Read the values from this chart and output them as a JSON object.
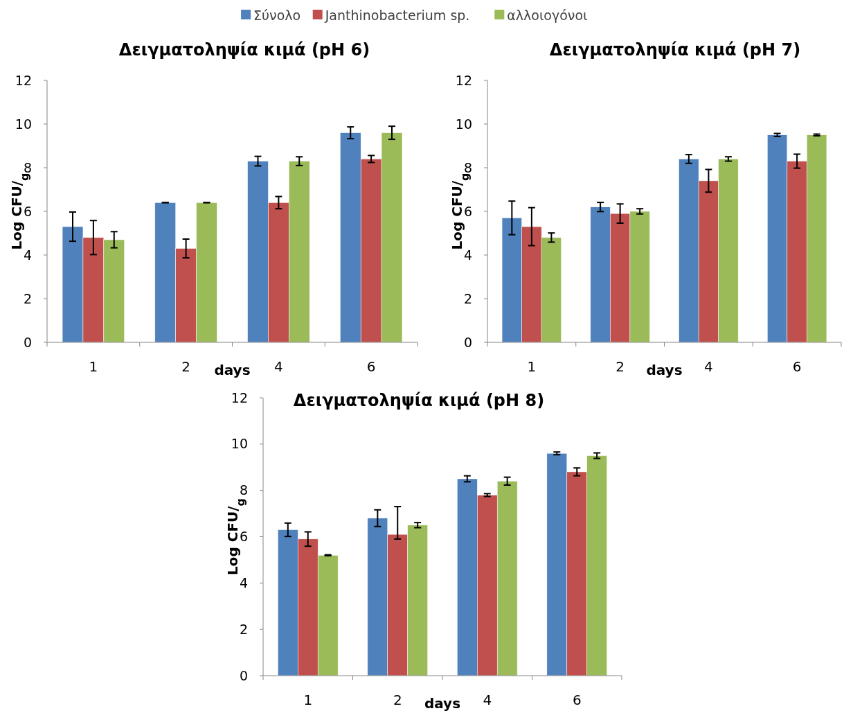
{
  "chart_data": [
    {
      "type": "bar",
      "title": "Δειγματοληψία κιμά (pH 6)",
      "xlabel": "days",
      "ylabel": "Log CFU/$_{g}$",
      "categories": [
        "1",
        "2",
        "4",
        "6"
      ],
      "ylim": [
        0,
        12
      ],
      "yticks": [
        0,
        2,
        4,
        6,
        8,
        10,
        12
      ],
      "legend": "top",
      "series": [
        {
          "name": "Σύνολο",
          "color": "#4f81bd",
          "values": [
            5.3,
            6.4,
            8.3,
            9.6
          ],
          "errors": [
            0.67,
            0,
            0.22,
            0.27
          ]
        },
        {
          "name": "Janthinobacterium sp.",
          "color": "#c0504d",
          "values": [
            4.8,
            4.3,
            6.4,
            8.4
          ],
          "errors": [
            0.78,
            0.43,
            0.28,
            0.16
          ]
        },
        {
          "name": "αλλοιογόνοι",
          "color": "#9bbb59",
          "values": [
            4.7,
            6.4,
            8.3,
            9.6
          ],
          "errors": [
            0.37,
            0,
            0.2,
            0.3
          ]
        }
      ]
    },
    {
      "type": "bar",
      "title": "Δειγματοληψία κιμά (pH 7)",
      "xlabel": "days",
      "ylabel": "Log CFU/$_{g}$",
      "categories": [
        "1",
        "2",
        "4",
        "6"
      ],
      "ylim": [
        0,
        12
      ],
      "yticks": [
        0,
        2,
        4,
        6,
        8,
        10,
        12
      ],
      "series": [
        {
          "color": "#4f81bd",
          "values": [
            5.7,
            6.2,
            8.4,
            9.5
          ],
          "errors": [
            0.77,
            0.21,
            0.2,
            0.07
          ]
        },
        {
          "color": "#c0504d",
          "values": [
            5.3,
            5.9,
            7.4,
            8.3
          ],
          "errors": [
            0.87,
            0.44,
            0.52,
            0.32
          ]
        },
        {
          "color": "#9bbb59",
          "values": [
            4.8,
            6.0,
            8.4,
            9.5
          ],
          "errors": [
            0.21,
            0.12,
            0.1,
            0.04
          ]
        }
      ]
    },
    {
      "type": "bar",
      "title": "Δειγματοληψία κιμά (pH 8)",
      "xlabel": "days",
      "ylabel": "Log CFU/$_{g}$",
      "categories": [
        "1",
        "2",
        "4",
        "6"
      ],
      "ylim": [
        0,
        12
      ],
      "yticks": [
        0,
        2,
        4,
        6,
        8,
        10,
        12
      ],
      "series": [
        {
          "color": "#4f81bd",
          "values": [
            6.3,
            6.8,
            8.5,
            9.6
          ],
          "errors": [
            0.29,
            0.36,
            0.13,
            0.06
          ]
        },
        {
          "color": "#c0504d",
          "values": [
            5.9,
            6.1,
            7.8,
            8.8
          ],
          "errors": [
            0.31,
            [
              5.9,
              7.3
            ],
            0.06,
            0.17
          ]
        },
        {
          "color": "#9bbb59",
          "values": [
            5.2,
            6.5,
            8.4,
            9.5
          ],
          "errors": [
            0.02,
            0.11,
            0.17,
            0.12
          ]
        }
      ]
    }
  ]
}
